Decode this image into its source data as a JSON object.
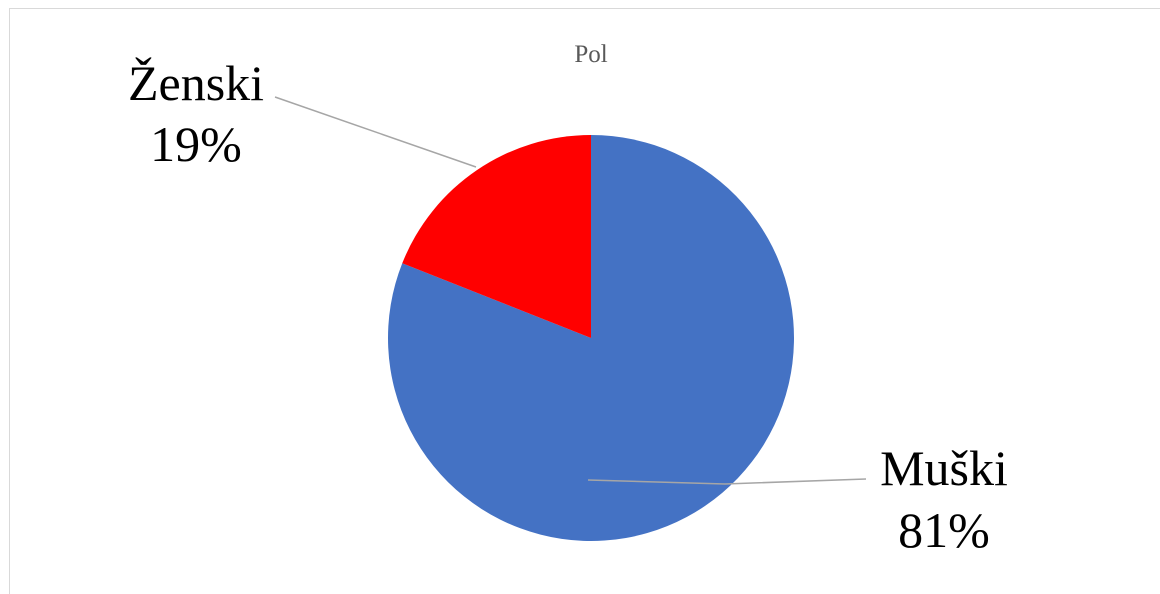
{
  "chart_data": {
    "type": "pie",
    "title": "Pol",
    "slices": [
      {
        "label": "Muški",
        "value": 81,
        "value_label": "81%",
        "color": "#4472C4"
      },
      {
        "label": "Ženski",
        "value": 19,
        "value_label": "19%",
        "color": "#FF0000"
      }
    ],
    "start_angle_deg": 0,
    "direction": "clockwise",
    "legend": "none",
    "data_labels": "outside-with-leader-lines"
  }
}
